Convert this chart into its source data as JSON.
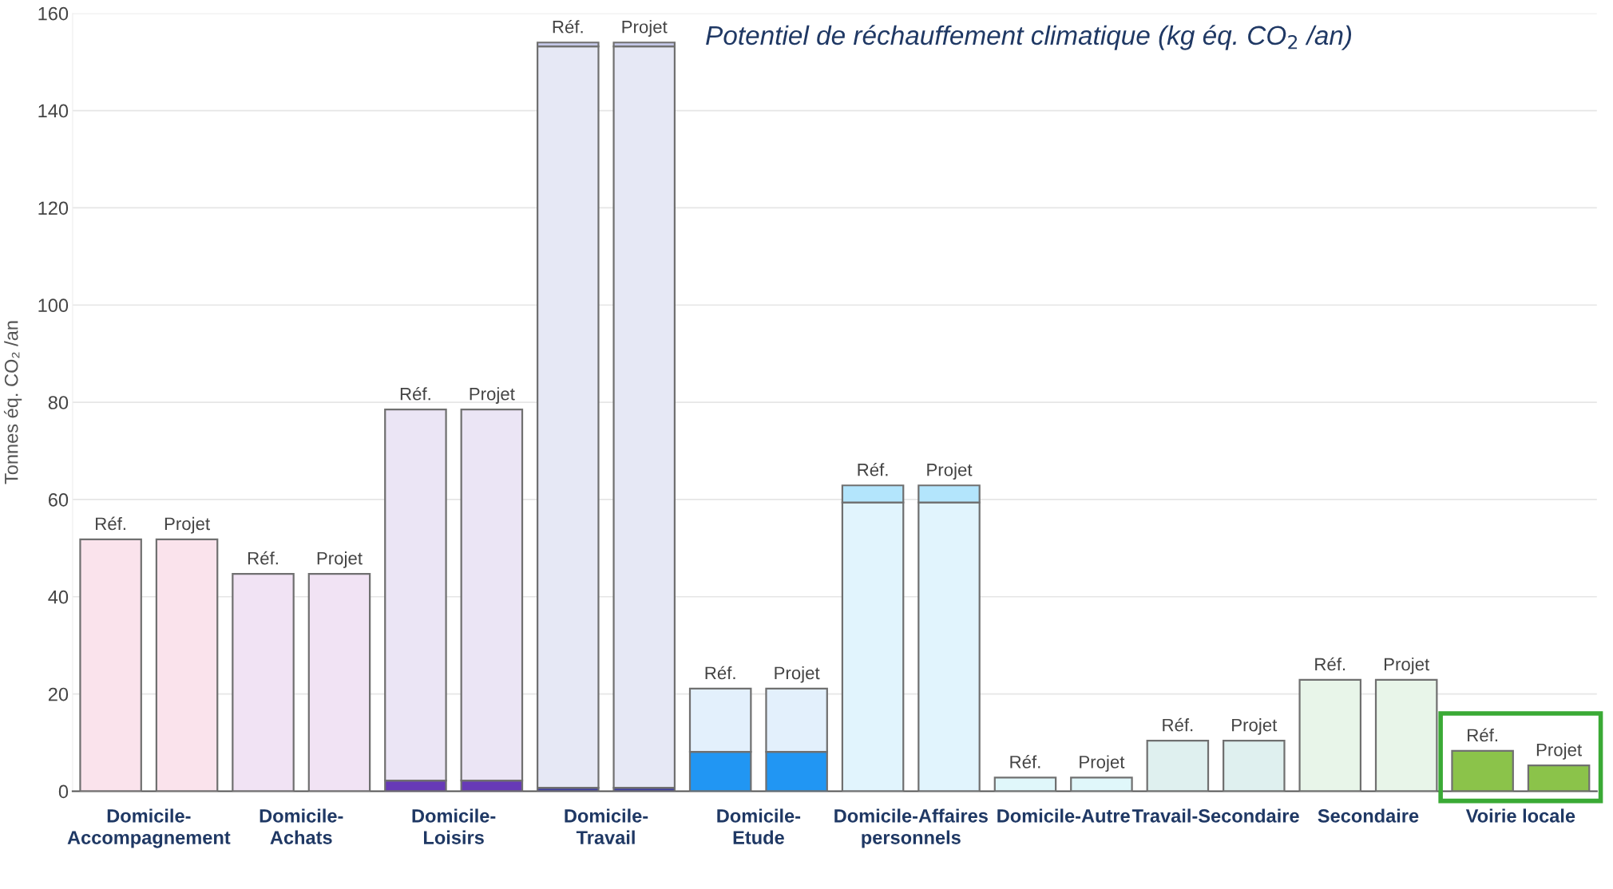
{
  "chart_data": {
    "type": "bar",
    "stacked": true,
    "title": "Potentiel de réchauffement climatique (kg éq. CO$_{2}$ /an)",
    "ylabel": "Tonnes éq. CO₂ /an",
    "categories": [
      null,
      null,
      null,
      null,
      null,
      null,
      null,
      null,
      null,
      null,
      null,
      null,
      null,
      null,
      null,
      null,
      null,
      null,
      null,
      null
    ],
    "annotations": [
      "Domicile-\nAccompagnement",
      "Domicile-\nAchats",
      "Domicile-\nLoisirs",
      "Domicile-\nTravail",
      "Domicile-\nEtude",
      "Domicile-Affaires\npersonnels",
      "Domicile-Autre",
      "Travail-Secondaire",
      "Secondaire",
      "Voirie locale"
    ],
    "series": [
      {
        "values": [
          null,
          null,
          null,
          null,
          2.2,
          2.2,
          0.7,
          0.7,
          8.1,
          8.1,
          null,
          null,
          null,
          null,
          null,
          null,
          null,
          null,
          null,
          null
        ],
        "colors": [
          "#fae3ec",
          "#fae3ec",
          "#8e3a9e",
          "#8e3a9e",
          "#673ab7",
          "#673ab7",
          "#3f3fa0",
          "#3f3fa0",
          "#2196f3",
          "#2196f3",
          "#0288d1",
          "#0288d1",
          "#e0f7fa",
          "#e0f7fa",
          "#dff0ef",
          "#dff0ef",
          "#e8f5e9",
          "#e8f5e9",
          "#8bc34a",
          "#8bc34a"
        ]
      },
      {
        "values": [
          51.8,
          51.8,
          44.7,
          44.7,
          76.3,
          76.3,
          152.5,
          152.5,
          13.0,
          13.0,
          59.4,
          59.4,
          2.8,
          2.8,
          10.4,
          10.4,
          22.9,
          22.9,
          8.3,
          5.3
        ],
        "colors": [
          "#fae3ec",
          "#fae3ec",
          "#f1e3f4",
          "#f1e3f4",
          "#ebe5f5",
          "#ebe5f5",
          "#e6e8f5",
          "#e6e8f5",
          "#e3f0fc",
          "#e3f0fc",
          "#e1f4fd",
          "#e1f4fd",
          "#e0f7fa",
          "#e0f7fa",
          "#dff0ef",
          "#dff0ef",
          "#e8f5e9",
          "#e8f5e9",
          "#8bc34a",
          "#8bc34a"
        ],
        "value_labels": [
          "Réf.",
          "Projet",
          "Réf.",
          "Projet",
          "Réf.",
          "Projet",
          "Réf.",
          "Projet",
          "Réf.",
          "Projet",
          "Réf.",
          "Projet",
          "Réf.",
          "Projet",
          "Réf.",
          "Projet",
          "Réf.",
          "Projet",
          "Réf.",
          "Projet"
        ]
      },
      {
        "values": [
          null,
          null,
          null,
          null,
          null,
          null,
          0.8,
          0.8,
          null,
          null,
          3.5,
          3.5,
          null,
          null,
          null,
          null,
          null,
          null,
          null,
          null
        ],
        "colors": [
          "#fae3ec",
          "#fae3ec",
          "#f1e3f4",
          "#f1e3f4",
          "#ebe5f5",
          "#ebe5f5",
          "#c5c8e8",
          "#c5c8e8",
          "#e3f0fc",
          "#e3f0fc",
          "#b3e5fc",
          "#b3e5fc",
          "#e0f7fa",
          "#e0f7fa",
          "#dff0ef",
          "#dff0ef",
          "#e8f5e9",
          "#e8f5e9",
          "#8bc34a",
          "#8bc34a"
        ]
      }
    ],
    "ylim": [
      0,
      160
    ],
    "yticks": [
      0,
      20,
      40,
      60,
      80,
      100,
      120,
      140,
      160
    ],
    "grid": "y",
    "legend": false
  }
}
